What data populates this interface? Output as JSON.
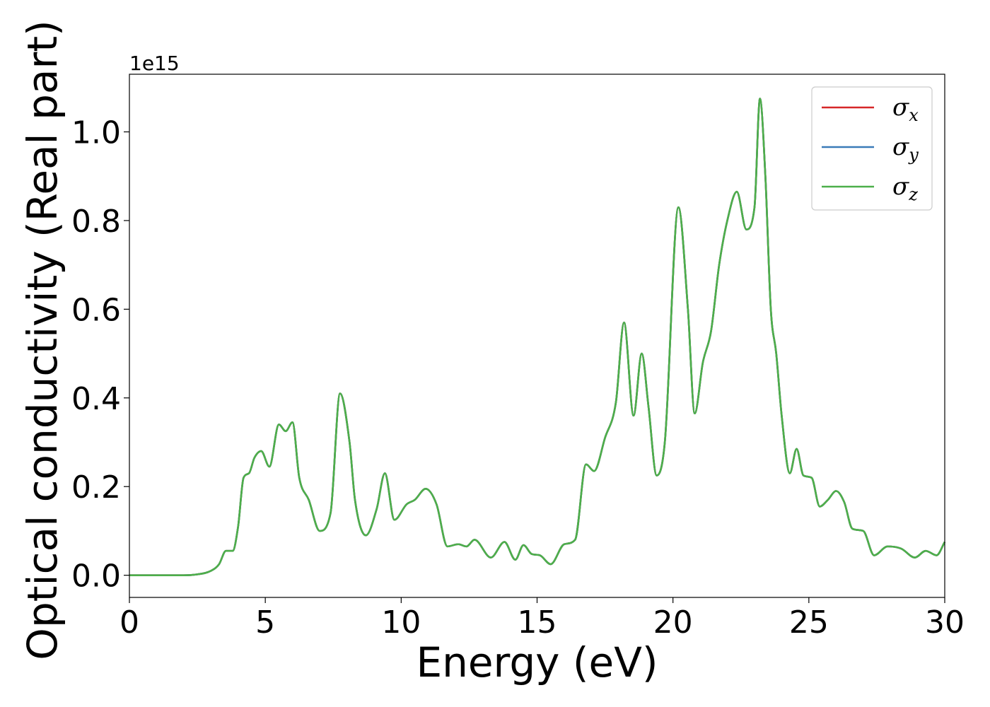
{
  "chart_data": {
    "type": "line",
    "xlabel": "Energy (eV)",
    "ylabel": "Optical conductivity (Real part)",
    "y_offset_text": "1e15",
    "xlim": [
      0,
      30
    ],
    "ylim": [
      -0.05,
      1.13
    ],
    "xticks": [
      0,
      5,
      10,
      15,
      20,
      25,
      30
    ],
    "xtick_labels": [
      "0",
      "5",
      "10",
      "15",
      "20",
      "25",
      "30"
    ],
    "yticks": [
      0.0,
      0.2,
      0.4,
      0.6,
      0.8,
      1.0
    ],
    "ytick_labels": [
      "0.0",
      "0.2",
      "0.4",
      "0.6",
      "0.8",
      "1.0"
    ],
    "grid": false,
    "legend_position": "top-right",
    "series": [
      {
        "name": "σx",
        "symbol": "σ",
        "subscript": "x",
        "color": "#d62728",
        "shared": "curve"
      },
      {
        "name": "σy",
        "symbol": "σ",
        "subscript": "y",
        "color": "#3a7bb8",
        "shared": "curve"
      },
      {
        "name": "σz",
        "symbol": "σ",
        "subscript": "z",
        "color": "#4daf4a",
        "shared": "curve"
      }
    ],
    "curve": {
      "x": [
        0,
        1,
        2,
        2.5,
        3.0,
        3.3,
        3.55,
        3.8,
        4.0,
        4.2,
        4.4,
        4.6,
        4.85,
        5.15,
        5.5,
        5.75,
        6.0,
        6.25,
        6.6,
        7.0,
        7.4,
        7.75,
        8.1,
        8.3,
        8.7,
        9.1,
        9.4,
        9.75,
        10.2,
        10.5,
        10.9,
        11.3,
        11.7,
        12.1,
        12.4,
        12.7,
        13.3,
        13.8,
        14.2,
        14.5,
        14.8,
        15.1,
        15.5,
        16.0,
        16.4,
        16.8,
        17.1,
        17.5,
        17.9,
        18.2,
        18.55,
        18.85,
        19.1,
        19.4,
        19.7,
        20.2,
        20.55,
        20.8,
        21.1,
        21.4,
        21.7,
        22.0,
        22.35,
        22.7,
        23.0,
        23.2,
        23.4,
        23.6,
        23.8,
        24.0,
        24.3,
        24.55,
        24.8,
        25.1,
        25.4,
        25.7,
        26.0,
        26.3,
        26.6,
        27.0,
        27.4,
        27.9,
        28.4,
        28.9,
        29.3,
        29.7,
        30.0
      ],
      "y": [
        0.0,
        0.0,
        0.0,
        0.002,
        0.01,
        0.025,
        0.055,
        0.055,
        0.11,
        0.22,
        0.23,
        0.265,
        0.28,
        0.245,
        0.34,
        0.325,
        0.345,
        0.22,
        0.17,
        0.1,
        0.14,
        0.41,
        0.3,
        0.17,
        0.09,
        0.15,
        0.23,
        0.125,
        0.16,
        0.17,
        0.195,
        0.16,
        0.065,
        0.07,
        0.065,
        0.08,
        0.04,
        0.075,
        0.035,
        0.068,
        0.048,
        0.045,
        0.025,
        0.07,
        0.08,
        0.25,
        0.235,
        0.31,
        0.39,
        0.57,
        0.36,
        0.5,
        0.38,
        0.225,
        0.3,
        0.83,
        0.6,
        0.365,
        0.48,
        0.55,
        0.7,
        0.8,
        0.865,
        0.78,
        0.83,
        1.075,
        0.9,
        0.6,
        0.5,
        0.36,
        0.23,
        0.285,
        0.225,
        0.22,
        0.155,
        0.17,
        0.19,
        0.165,
        0.105,
        0.1,
        0.045,
        0.065,
        0.06,
        0.04,
        0.055,
        0.045,
        0.075
      ]
    }
  }
}
